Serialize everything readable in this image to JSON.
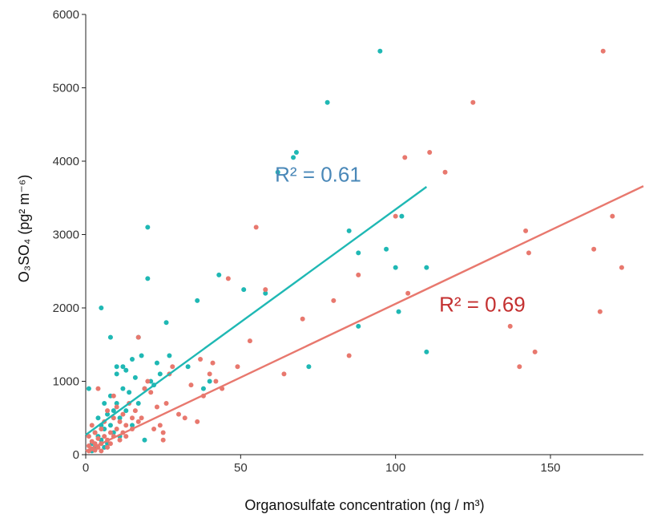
{
  "chart_data": {
    "type": "scatter",
    "xlabel": "Organosulfate concentration (ng / m³)",
    "ylabel": "O₃SO₄ (pg² m⁻⁶)",
    "xlim": [
      0,
      180
    ],
    "ylim": [
      0,
      6000
    ],
    "x_ticks": [
      0,
      50,
      100,
      150
    ],
    "y_ticks": [
      0,
      1000,
      2000,
      3000,
      4000,
      5000,
      6000
    ],
    "grid": false,
    "series": [
      {
        "color": "#1fb8b4",
        "points": [
          [
            1,
            900
          ],
          [
            2,
            50
          ],
          [
            2,
            150
          ],
          [
            3,
            300
          ],
          [
            3,
            100
          ],
          [
            4,
            500
          ],
          [
            4,
            250
          ],
          [
            5,
            2000
          ],
          [
            5,
            400
          ],
          [
            5,
            200
          ],
          [
            6,
            700
          ],
          [
            6,
            100
          ],
          [
            6,
            350
          ],
          [
            7,
            150
          ],
          [
            7,
            550
          ],
          [
            8,
            1600
          ],
          [
            8,
            800
          ],
          [
            8,
            400
          ],
          [
            9,
            600
          ],
          [
            9,
            300
          ],
          [
            10,
            1100
          ],
          [
            10,
            1200
          ],
          [
            10,
            700
          ],
          [
            11,
            500
          ],
          [
            11,
            250
          ],
          [
            12,
            1200
          ],
          [
            12,
            900
          ],
          [
            13,
            1150
          ],
          [
            13,
            600
          ],
          [
            14,
            850
          ],
          [
            15,
            1300
          ],
          [
            15,
            400
          ],
          [
            16,
            1050
          ],
          [
            17,
            1600
          ],
          [
            17,
            700
          ],
          [
            18,
            1350
          ],
          [
            19,
            200
          ],
          [
            19,
            900
          ],
          [
            20,
            3100
          ],
          [
            20,
            2400
          ],
          [
            21,
            1000
          ],
          [
            22,
            950
          ],
          [
            23,
            1250
          ],
          [
            24,
            1100
          ],
          [
            26,
            1800
          ],
          [
            27,
            1350
          ],
          [
            33,
            1200
          ],
          [
            36,
            2100
          ],
          [
            38,
            900
          ],
          [
            40,
            1000
          ],
          [
            43,
            2450
          ],
          [
            51,
            2250
          ],
          [
            58,
            2200
          ],
          [
            62,
            3850
          ],
          [
            67,
            4050
          ],
          [
            68,
            4120
          ],
          [
            72,
            1200
          ],
          [
            78,
            4800
          ],
          [
            85,
            3050
          ],
          [
            88,
            2750
          ],
          [
            88,
            1750
          ],
          [
            95,
            5500
          ],
          [
            97,
            2800
          ],
          [
            100,
            2550
          ],
          [
            101,
            1950
          ],
          [
            102,
            3250
          ],
          [
            110,
            2550
          ],
          [
            110,
            1400
          ]
        ],
        "fit": {
          "x": [
            0,
            110
          ],
          "y": [
            270,
            3650
          ]
        }
      },
      {
        "color": "#e8786e",
        "points": [
          [
            1,
            50
          ],
          [
            1,
            120
          ],
          [
            1,
            250
          ],
          [
            2,
            80
          ],
          [
            2,
            180
          ],
          [
            2,
            400
          ],
          [
            3,
            60
          ],
          [
            3,
            150
          ],
          [
            3,
            300
          ],
          [
            4,
            100
          ],
          [
            4,
            220
          ],
          [
            4,
            900
          ],
          [
            5,
            50
          ],
          [
            5,
            350
          ],
          [
            5,
            150
          ],
          [
            6,
            250
          ],
          [
            6,
            450
          ],
          [
            7,
            100
          ],
          [
            7,
            200
          ],
          [
            7,
            600
          ],
          [
            8,
            300
          ],
          [
            8,
            150
          ],
          [
            9,
            500
          ],
          [
            9,
            800
          ],
          [
            9,
            250
          ],
          [
            10,
            350
          ],
          [
            10,
            650
          ],
          [
            11,
            200
          ],
          [
            11,
            450
          ],
          [
            12,
            300
          ],
          [
            12,
            550
          ],
          [
            13,
            400
          ],
          [
            13,
            250
          ],
          [
            14,
            700
          ],
          [
            15,
            500
          ],
          [
            15,
            350
          ],
          [
            16,
            600
          ],
          [
            17,
            1600
          ],
          [
            17,
            450
          ],
          [
            18,
            500
          ],
          [
            19,
            900
          ],
          [
            20,
            1000
          ],
          [
            21,
            850
          ],
          [
            22,
            350
          ],
          [
            23,
            650
          ],
          [
            24,
            400
          ],
          [
            25,
            300
          ],
          [
            25,
            200
          ],
          [
            26,
            700
          ],
          [
            27,
            1100
          ],
          [
            28,
            1200
          ],
          [
            30,
            550
          ],
          [
            32,
            500
          ],
          [
            34,
            950
          ],
          [
            36,
            450
          ],
          [
            37,
            1300
          ],
          [
            38,
            800
          ],
          [
            40,
            1100
          ],
          [
            41,
            1250
          ],
          [
            42,
            1000
          ],
          [
            44,
            900
          ],
          [
            46,
            2400
          ],
          [
            49,
            1200
          ],
          [
            53,
            1550
          ],
          [
            55,
            3100
          ],
          [
            58,
            2250
          ],
          [
            64,
            1100
          ],
          [
            70,
            1850
          ],
          [
            80,
            2100
          ],
          [
            85,
            1350
          ],
          [
            88,
            2450
          ],
          [
            100,
            3250
          ],
          [
            103,
            4050
          ],
          [
            104,
            2200
          ],
          [
            111,
            4120
          ],
          [
            116,
            3850
          ],
          [
            125,
            4800
          ],
          [
            137,
            1750
          ],
          [
            140,
            1200
          ],
          [
            142,
            3050
          ],
          [
            143,
            2750
          ],
          [
            145,
            1400
          ],
          [
            164,
            2800
          ],
          [
            166,
            1950
          ],
          [
            167,
            5500
          ],
          [
            170,
            3250
          ],
          [
            173,
            2550
          ]
        ],
        "fit": {
          "x": [
            0,
            180
          ],
          "y": [
            50,
            3660
          ]
        }
      }
    ],
    "annotations": [
      {
        "text": "R² = 0.61",
        "x": 75,
        "y": 3720,
        "color": "#4a88b8"
      },
      {
        "text": "R² = 0.69",
        "x": 128,
        "y": 1950,
        "color": "#c43030"
      }
    ]
  }
}
